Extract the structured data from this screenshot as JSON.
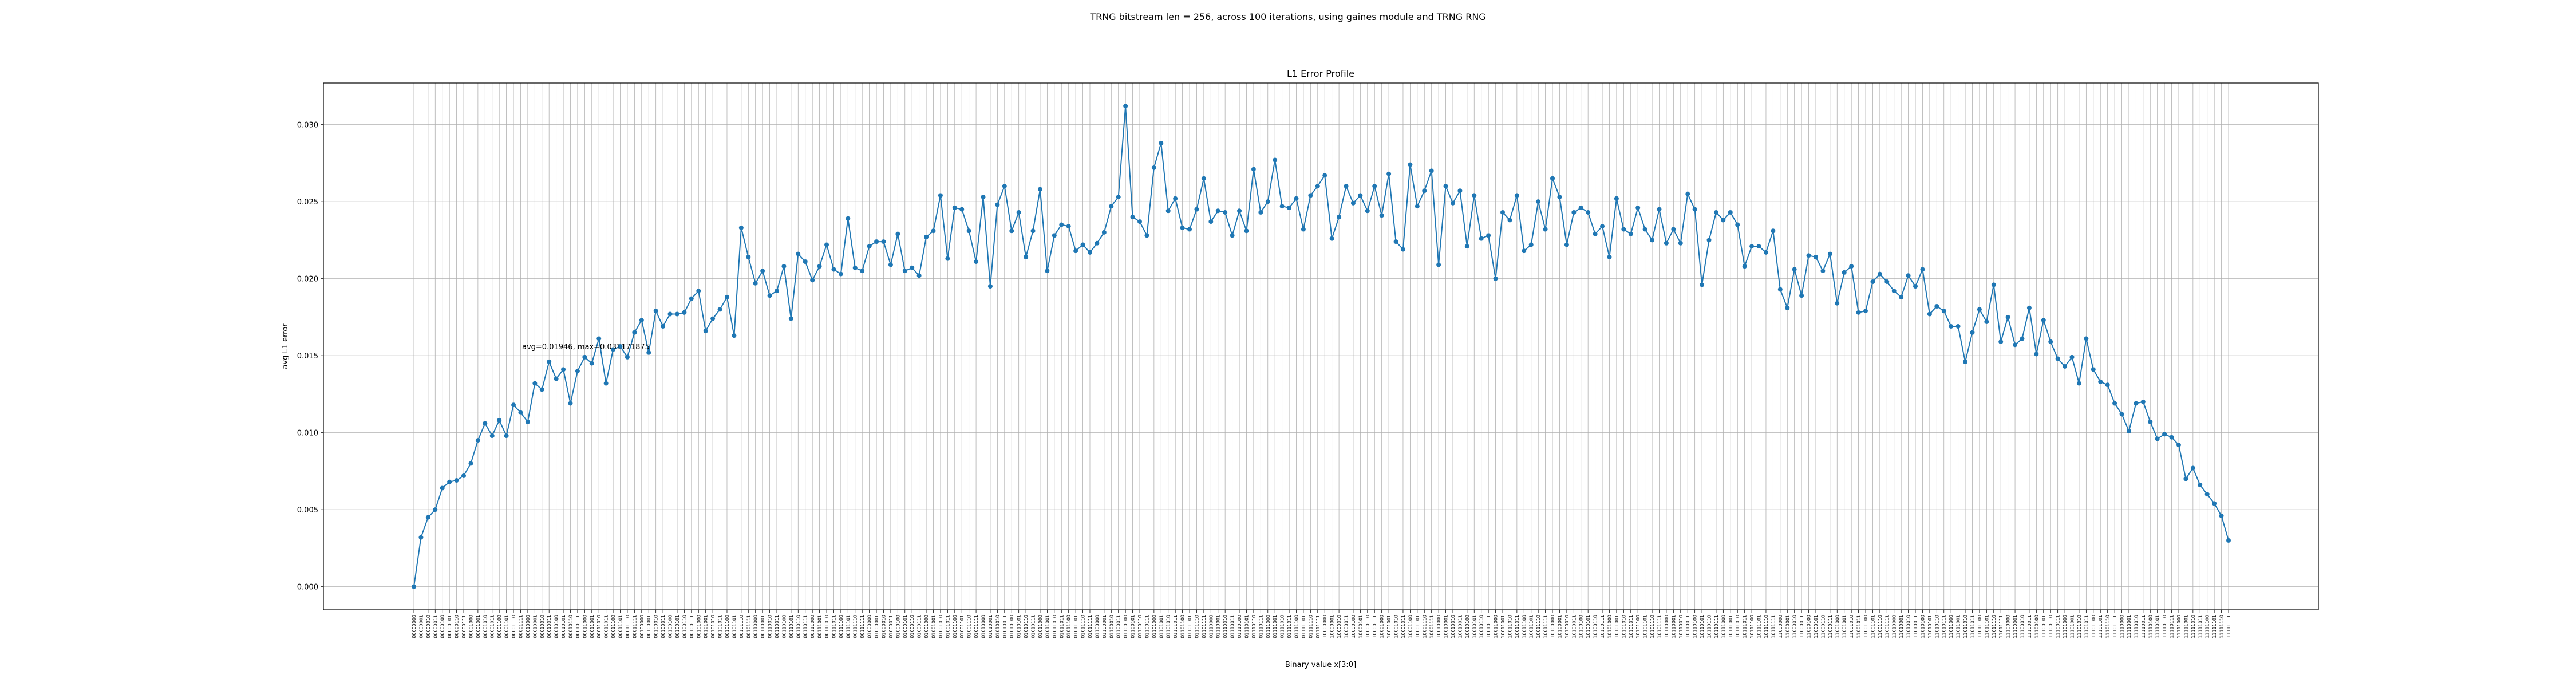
{
  "figure": {
    "suptitle": "TRNG bitstream len = 256, across 100 iterations, using gaines module and TRNG RNG"
  },
  "chart_data": {
    "type": "line",
    "title": "L1 Error Profile",
    "xlabel": "Binary value x[3:0]",
    "ylabel": "avg L1 error",
    "ylim": [
      -0.0015,
      0.0327
    ],
    "yticks": [
      "0.000",
      "0.005",
      "0.010",
      "0.015",
      "0.020",
      "0.025",
      "0.030"
    ],
    "grid": true,
    "annotation": "avg=0.01946, max=0.031171875",
    "marker": "circle",
    "color": "#1f77b4",
    "categories": [
      "00000000",
      "00000001",
      "00000010",
      "00000011",
      "00000100",
      "00000101",
      "00000110",
      "00000111",
      "00001000",
      "00001001",
      "00001010",
      "00001011",
      "00001100",
      "00001101",
      "00001110",
      "00001111",
      "00010000",
      "00010001",
      "00010010",
      "00010011",
      "00010100",
      "00010101",
      "00010110",
      "00010111",
      "00011000",
      "00011001",
      "00011010",
      "00011011",
      "00011100",
      "00011101",
      "00011110",
      "00011111",
      "00100000",
      "00100001",
      "00100010",
      "00100011",
      "00100100",
      "00100101",
      "00100110",
      "00100111",
      "00101000",
      "00101001",
      "00101010",
      "00101011",
      "00101100",
      "00101101",
      "00101110",
      "00101111",
      "00110000",
      "00110001",
      "00110010",
      "00110011",
      "00110100",
      "00110101",
      "00110110",
      "00110111",
      "00111000",
      "00111001",
      "00111010",
      "00111011",
      "00111100",
      "00111101",
      "00111110",
      "00111111",
      "01000000",
      "01000001",
      "01000010",
      "01000011",
      "01000100",
      "01000101",
      "01000110",
      "01000111",
      "01001000",
      "01001001",
      "01001010",
      "01001011",
      "01001100",
      "01001101",
      "01001110",
      "01001111",
      "01010000",
      "01010001",
      "01010010",
      "01010011",
      "01010100",
      "01010101",
      "01010110",
      "01010111",
      "01011000",
      "01011001",
      "01011010",
      "01011011",
      "01011100",
      "01011101",
      "01011110",
      "01011111",
      "01100000",
      "01100001",
      "01100010",
      "01100011",
      "01100100",
      "01100101",
      "01100110",
      "01100111",
      "01101000",
      "01101001",
      "01101010",
      "01101011",
      "01101100",
      "01101101",
      "01101110",
      "01101111",
      "01110000",
      "01110001",
      "01110010",
      "01110011",
      "01110100",
      "01110101",
      "01110110",
      "01110111",
      "01111000",
      "01111001",
      "01111010",
      "01111011",
      "01111100",
      "01111101",
      "01111110",
      "01111111",
      "10000000",
      "10000001",
      "10000010",
      "10000011",
      "10000100",
      "10000101",
      "10000110",
      "10000111",
      "10001000",
      "10001001",
      "10001010",
      "10001011",
      "10001100",
      "10001101",
      "10001110",
      "10001111",
      "10010000",
      "10010001",
      "10010010",
      "10010011",
      "10010100",
      "10010101",
      "10010110",
      "10010111",
      "10011000",
      "10011001",
      "10011010",
      "10011011",
      "10011100",
      "10011101",
      "10011110",
      "10011111",
      "10100000",
      "10100001",
      "10100010",
      "10100011",
      "10100100",
      "10100101",
      "10100110",
      "10100111",
      "10101000",
      "10101001",
      "10101010",
      "10101011",
      "10101100",
      "10101101",
      "10101110",
      "10101111",
      "10110000",
      "10110001",
      "10110010",
      "10110011",
      "10110100",
      "10110101",
      "10110110",
      "10110111",
      "10111000",
      "10111001",
      "10111010",
      "10111011",
      "10111100",
      "10111101",
      "10111110",
      "10111111",
      "11000000",
      "11000001",
      "11000010",
      "11000011",
      "11000100",
      "11000101",
      "11000110",
      "11000111",
      "11001000",
      "11001001",
      "11001010",
      "11001011",
      "11001100",
      "11001101",
      "11001110",
      "11001111",
      "11010000",
      "11010001",
      "11010010",
      "11010011",
      "11010100",
      "11010101",
      "11010110",
      "11010111",
      "11011000",
      "11011001",
      "11011010",
      "11011011",
      "11011100",
      "11011101",
      "11011110",
      "11011111",
      "11100000",
      "11100001",
      "11100010",
      "11100011",
      "11100100",
      "11100101",
      "11100110",
      "11100111",
      "11101000",
      "11101001",
      "11101010",
      "11101011",
      "11101100",
      "11101101",
      "11101110",
      "11101111",
      "11110000",
      "11110001",
      "11110010",
      "11110011",
      "11110100",
      "11110101",
      "11110110",
      "11110111",
      "11111000",
      "11111001",
      "11111010",
      "11111011",
      "11111100",
      "11111101",
      "11111110",
      "11111111"
    ],
    "values": [
      0.0,
      0.0032,
      0.0045,
      0.005,
      0.0064,
      0.0068,
      0.0069,
      0.0072,
      0.008,
      0.0095,
      0.0106,
      0.0098,
      0.0108,
      0.0098,
      0.0118,
      0.0113,
      0.0107,
      0.0132,
      0.0128,
      0.0146,
      0.0135,
      0.0141,
      0.0119,
      0.014,
      0.0149,
      0.0145,
      0.0161,
      0.0132,
      0.0154,
      0.0156,
      0.0149,
      0.0165,
      0.0173,
      0.0152,
      0.0179,
      0.0169,
      0.0177,
      0.0177,
      0.0178,
      0.0187,
      0.0192,
      0.0166,
      0.0174,
      0.018,
      0.0188,
      0.0163,
      0.0233,
      0.0214,
      0.0197,
      0.0205,
      0.0189,
      0.0192,
      0.0208,
      0.0174,
      0.0216,
      0.0211,
      0.0199,
      0.0208,
      0.0222,
      0.0206,
      0.0203,
      0.0239,
      0.0207,
      0.0205,
      0.0221,
      0.0224,
      0.0224,
      0.0209,
      0.0229,
      0.0205,
      0.0207,
      0.0202,
      0.0227,
      0.0231,
      0.0254,
      0.0213,
      0.0246,
      0.0245,
      0.0231,
      0.0211,
      0.0253,
      0.0195,
      0.0248,
      0.026,
      0.0231,
      0.0243,
      0.0214,
      0.0231,
      0.0258,
      0.0205,
      0.0228,
      0.0235,
      0.0234,
      0.0218,
      0.0222,
      0.0217,
      0.0223,
      0.023,
      0.0247,
      0.0253,
      0.0312,
      0.024,
      0.0237,
      0.0228,
      0.0272,
      0.0288,
      0.0244,
      0.0252,
      0.0233,
      0.0232,
      0.0245,
      0.0265,
      0.0237,
      0.0244,
      0.0243,
      0.0228,
      0.0244,
      0.0231,
      0.0271,
      0.0243,
      0.025,
      0.0277,
      0.0247,
      0.0246,
      0.0252,
      0.0232,
      0.0254,
      0.026,
      0.0267,
      0.0226,
      0.024,
      0.026,
      0.0249,
      0.0254,
      0.0244,
      0.026,
      0.0241,
      0.0268,
      0.0224,
      0.0219,
      0.0274,
      0.0247,
      0.0257,
      0.027,
      0.0209,
      0.026,
      0.0249,
      0.0257,
      0.0221,
      0.0254,
      0.0226,
      0.0228,
      0.02,
      0.0243,
      0.0238,
      0.0254,
      0.0218,
      0.0222,
      0.025,
      0.0232,
      0.0265,
      0.0253,
      0.0222,
      0.0243,
      0.0246,
      0.0243,
      0.0229,
      0.0234,
      0.0214,
      0.0252,
      0.0232,
      0.0229,
      0.0246,
      0.0232,
      0.0225,
      0.0245,
      0.0223,
      0.0232,
      0.0223,
      0.0255,
      0.0245,
      0.0196,
      0.0225,
      0.0243,
      0.0238,
      0.0243,
      0.0235,
      0.0208,
      0.0221,
      0.0221,
      0.0217,
      0.0231,
      0.0193,
      0.0181,
      0.0206,
      0.0189,
      0.0215,
      0.0214,
      0.0205,
      0.0216,
      0.0184,
      0.0204,
      0.0208,
      0.0178,
      0.0179,
      0.0198,
      0.0203,
      0.0198,
      0.0192,
      0.0188,
      0.0202,
      0.0195,
      0.0206,
      0.0177,
      0.0182,
      0.0179,
      0.0169,
      0.0169,
      0.0146,
      0.0165,
      0.018,
      0.0172,
      0.0196,
      0.0159,
      0.0175,
      0.0157,
      0.0161,
      0.0181,
      0.0151,
      0.0173,
      0.0159,
      0.0148,
      0.0143,
      0.0149,
      0.0132,
      0.0161,
      0.0141,
      0.0133,
      0.0131,
      0.0119,
      0.0112,
      0.0101,
      0.0119,
      0.012,
      0.0107,
      0.0096,
      0.0099,
      0.0097,
      0.0092,
      0.007,
      0.0077,
      0.0066,
      0.006,
      0.0054,
      0.0046,
      0.003
    ]
  }
}
